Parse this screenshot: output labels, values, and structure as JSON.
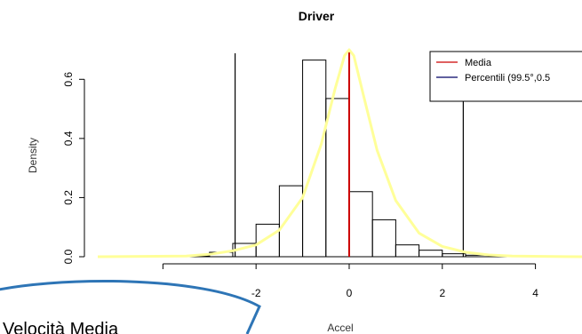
{
  "chart_data": {
    "type": "bar",
    "title": "Driver",
    "xlabel": "Accel",
    "ylabel": "Density",
    "xlim": [
      -5.4,
      5.0
    ],
    "ylim": [
      0,
      0.7
    ],
    "x_ticks": [
      -2,
      0,
      2,
      4
    ],
    "y_ticks": [
      0.0,
      0.2,
      0.4,
      0.6
    ],
    "x_tick_labels": [
      "-2",
      "0",
      "2",
      "4"
    ],
    "y_tick_labels": [
      "0.0",
      "0.2",
      "0.4",
      "0.6"
    ],
    "histogram": {
      "bin_edges": [
        -3.5,
        -3.0,
        -2.5,
        -2.0,
        -1.5,
        -1.0,
        -0.5,
        0.0,
        0.5,
        1.0,
        1.5,
        2.0,
        2.5,
        3.0,
        3.5
      ],
      "densities": [
        0.003,
        0.015,
        0.045,
        0.11,
        0.24,
        0.665,
        0.535,
        0.22,
        0.125,
        0.04,
        0.022,
        0.01,
        0.005,
        0.003
      ]
    },
    "density_curve": {
      "color": "#ffff99",
      "x": [
        -5.4,
        -3.5,
        -3.0,
        -2.5,
        -2.0,
        -1.5,
        -1.0,
        -0.6,
        -0.3,
        -0.1,
        0.0,
        0.1,
        0.3,
        0.6,
        1.0,
        1.5,
        2.0,
        2.5,
        3.0,
        3.5,
        5.0
      ],
      "y": [
        0.0,
        0.002,
        0.008,
        0.02,
        0.04,
        0.09,
        0.2,
        0.38,
        0.57,
        0.68,
        0.7,
        0.68,
        0.55,
        0.36,
        0.19,
        0.08,
        0.035,
        0.015,
        0.006,
        0.002,
        0.0
      ]
    },
    "mean_line": {
      "x": 0.0,
      "color": "#cc0000"
    },
    "percentile_lines": {
      "x": [
        -2.45,
        2.45
      ],
      "color": "#000000"
    },
    "legend": {
      "position": "top-right",
      "entries": [
        {
          "label": "Media",
          "color": "#cc0000"
        },
        {
          "label": "Percentili (99.5°,0.5",
          "color": "#000066"
        }
      ]
    }
  },
  "callout": {
    "text": "Velocità Media",
    "border_color": "#2e75b6"
  }
}
